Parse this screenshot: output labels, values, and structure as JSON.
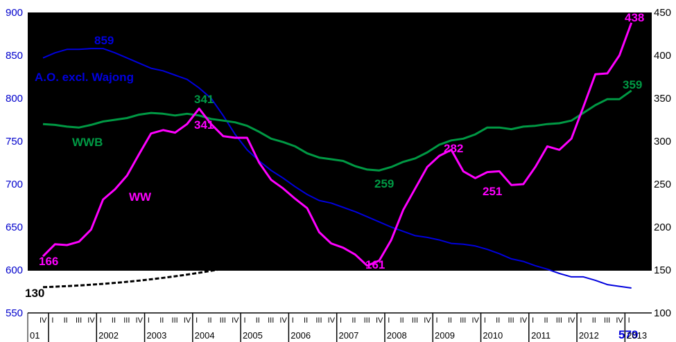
{
  "chart_data": {
    "type": "line",
    "y_left": {
      "min": 550,
      "max": 900,
      "ticks": [
        550,
        600,
        650,
        700,
        750,
        800,
        850,
        900
      ]
    },
    "y_right": {
      "min": 100,
      "max": 450,
      "ticks": [
        100,
        150,
        200,
        250,
        300,
        350,
        400,
        450
      ]
    },
    "quarter_labels": [
      "I",
      "II",
      "III",
      "IV"
    ],
    "years": [
      "01",
      "2002",
      "2003",
      "2004",
      "2005",
      "2006",
      "2007",
      "2008",
      "2009",
      "2010",
      "2011",
      "2012",
      "2013"
    ],
    "first_period": "2001 IV",
    "series": [
      {
        "name": "A.O. excl. Wajong",
        "axis": "left",
        "color": "#0000dd",
        "values": [
          847,
          853,
          857,
          857,
          858,
          858,
          853,
          847,
          841,
          835,
          832,
          827,
          822,
          812,
          800,
          780,
          758,
          740,
          727,
          716,
          707,
          697,
          688,
          681,
          678,
          673,
          668,
          662,
          656,
          650,
          645,
          640,
          638,
          635,
          631,
          630,
          628,
          624,
          619,
          613,
          610,
          605,
          601,
          596,
          592,
          592,
          588,
          583,
          581,
          579
        ]
      },
      {
        "name": "WWB",
        "axis": "right",
        "color": "#009944",
        "values": [
          320,
          319,
          317,
          316,
          319,
          323,
          325,
          327,
          331,
          333,
          332,
          330,
          332,
          330,
          326,
          324,
          322,
          318,
          311,
          303,
          299,
          294,
          286,
          281,
          279,
          277,
          271,
          267,
          266,
          270,
          276,
          280,
          287,
          296,
          301,
          303,
          308,
          316,
          316,
          314,
          317,
          318,
          320,
          321,
          324,
          333,
          342,
          349,
          349,
          359
        ]
      },
      {
        "name": "WW",
        "axis": "right",
        "color": "#ff00ff",
        "values": [
          166,
          180,
          179,
          183,
          197,
          232,
          244,
          260,
          285,
          309,
          313,
          310,
          320,
          338,
          320,
          306,
          304,
          304,
          275,
          255,
          245,
          233,
          222,
          194,
          181,
          176,
          168,
          155,
          161,
          185,
          220,
          245,
          270,
          283,
          290,
          265,
          257,
          264,
          265,
          249,
          250,
          270,
          294,
          290,
          303,
          340,
          378,
          379,
          400,
          438
        ]
      }
    ],
    "annotations": [
      {
        "text": "859",
        "series": "A.O. excl. Wajong"
      },
      {
        "text": "A.O. excl. Wajong",
        "series": "A.O. excl. Wajong"
      },
      {
        "text": "579",
        "series": "A.O. excl. Wajong"
      },
      {
        "text": "341",
        "series": "WWB"
      },
      {
        "text": "WWB",
        "series": "WWB"
      },
      {
        "text": "259",
        "series": "WWB"
      },
      {
        "text": "359",
        "series": "WWB"
      },
      {
        "text": "341",
        "series": "WW"
      },
      {
        "text": "WW",
        "series": "WW"
      },
      {
        "text": "166",
        "series": "WW"
      },
      {
        "text": "161",
        "series": "WW"
      },
      {
        "text": "282",
        "series": "WW"
      },
      {
        "text": "251",
        "series": "WW"
      },
      {
        "text": "438",
        "series": "WW"
      },
      {
        "text": "130",
        "series": "dashed"
      }
    ],
    "dashed_series": {
      "axis": "right",
      "color": "#000000",
      "start_value": 130,
      "end_value": 160
    },
    "colors": {
      "plot_background": "#000000",
      "page_background": "#ffffff",
      "left_axis_text": "#0000cc"
    }
  }
}
